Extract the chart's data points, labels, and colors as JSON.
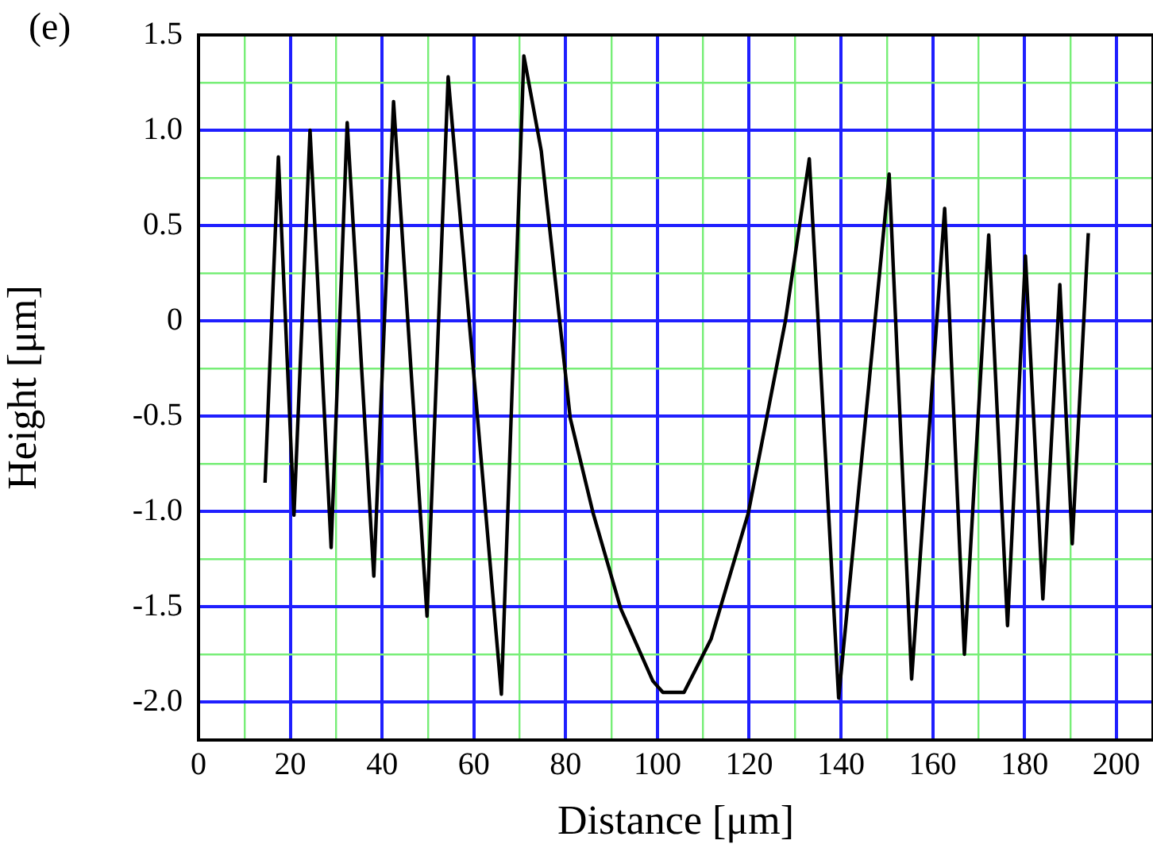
{
  "chart_data": {
    "type": "line",
    "xlabel": "Distance [μm]",
    "ylabel": "Height [μm]",
    "annotations": [
      "(e)"
    ],
    "x": [
      14.5,
      17.4,
      20.8,
      24.3,
      28.9,
      32.4,
      38.2,
      42.5,
      49.8,
      54.4,
      66.0,
      70.9,
      74.7,
      81,
      86,
      92,
      99,
      101.2,
      103.6,
      105.8,
      111.7,
      119.8,
      127.9,
      133.1,
      139.5,
      150.5,
      155.4,
      162.6,
      166.9,
      172.2,
      176.3,
      180.2,
      184.0,
      187.7,
      190.4,
      193.9
    ],
    "series": [
      {
        "color": "#000000",
        "values": [
          -0.85,
          0.86,
          -1.02,
          1.0,
          -1.19,
          1.04,
          -1.34,
          1.15,
          -1.55,
          1.28,
          -1.96,
          1.39,
          0.89,
          -0.51,
          -1.01,
          -1.51,
          -1.89,
          -1.95,
          -1.95,
          -1.95,
          -1.67,
          -1.01,
          0,
          0.85,
          -1.98,
          0.77,
          -1.88,
          0.59,
          -1.75,
          0.45,
          -1.6,
          0.34,
          -1.46,
          0.19,
          -1.17,
          0.46
        ]
      }
    ],
    "xlim": [
      0,
      208
    ],
    "ylim": [
      -2.2,
      1.5
    ],
    "xticks": [
      0,
      {
        "value": 10,
        "label": null
      },
      20,
      {
        "value": 30,
        "label": null
      },
      40,
      {
        "value": 50,
        "label": null
      },
      60,
      {
        "value": 70,
        "label": null
      },
      80,
      {
        "value": 90,
        "label": null
      },
      100,
      {
        "value": 110,
        "label": null
      },
      120,
      {
        "value": 130,
        "label": null
      },
      140,
      {
        "value": 150,
        "label": null
      },
      160,
      {
        "value": 170,
        "label": null
      },
      180,
      {
        "value": 190,
        "label": null
      },
      200
    ],
    "yticks": [
      {
        "value": -2,
        "label": "-2.0"
      },
      {
        "value": -1.75,
        "label": null
      },
      {
        "value": -1.5,
        "label": "-1.5"
      },
      {
        "value": -1.25,
        "label": null
      },
      {
        "value": -1,
        "label": "-1.0"
      },
      {
        "value": -0.75,
        "label": null
      },
      {
        "value": -0.5,
        "label": "-0.5"
      },
      {
        "value": -0.25,
        "label": null
      },
      0,
      {
        "value": 0.25,
        "label": null
      },
      {
        "value": 0.5,
        "label": "0.5"
      },
      {
        "value": 0.75,
        "label": null
      },
      {
        "value": 1,
        "label": "1.0"
      },
      {
        "value": 1.25,
        "label": null
      },
      {
        "value": 1.5,
        "label": "1.5"
      }
    ],
    "grid": true,
    "legend": false,
    "marker": "none",
    "line_style": "solid"
  }
}
